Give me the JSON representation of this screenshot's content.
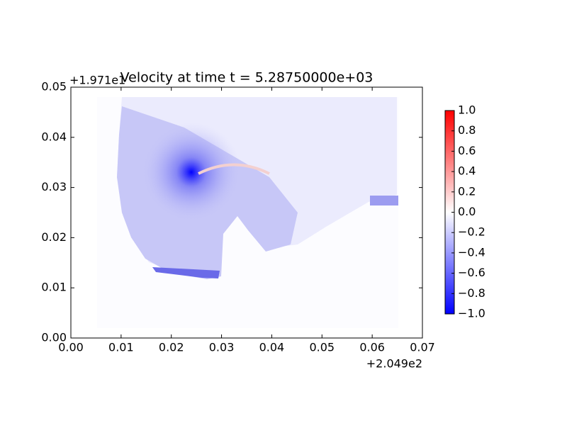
{
  "chart_data": {
    "type": "image",
    "title": "Velocity at time t = 5.28750000e+03",
    "x_offset_label": "+2.049e2",
    "y_offset_label": "+1.971e1",
    "xlim": [
      0,
      0.07
    ],
    "xticks": [
      {
        "value": 0,
        "label": "0.00"
      },
      0.01,
      0.02,
      0.03,
      0.04,
      0.05,
      0.06,
      0.07
    ],
    "ylim": [
      0,
      0.05
    ],
    "yticks": [
      {
        "value": 0,
        "label": "0.00"
      },
      0.01,
      0.02,
      0.03,
      0.04,
      0.05
    ],
    "colorbar": {
      "lim": [
        -1,
        1
      ],
      "colors": [
        "#0000ff",
        "#ffffff",
        "#ff0000"
      ],
      "ticks": [
        {
          "value": -1,
          "label": "−1.0"
        },
        {
          "value": -0.8,
          "label": "−0.8"
        },
        {
          "value": -0.6,
          "label": "−0.6"
        },
        {
          "value": -0.4,
          "label": "−0.4"
        },
        {
          "value": -0.2,
          "label": "−0.2"
        },
        {
          "value": 0,
          "label": "0.0"
        },
        0.2,
        0.4,
        0.6,
        0.8,
        {
          "value": 1,
          "label": "1.0"
        }
      ]
    }
  }
}
